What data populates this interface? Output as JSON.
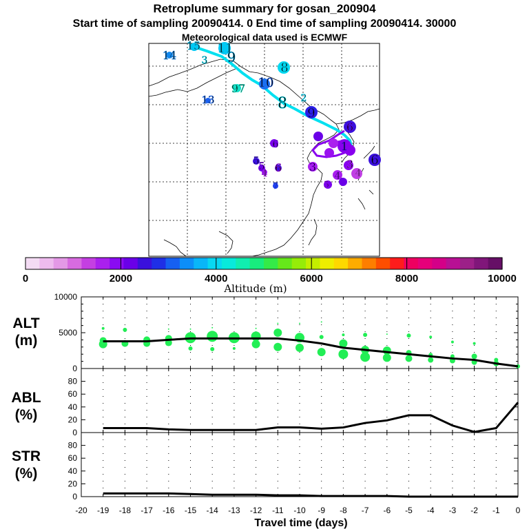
{
  "header": {
    "title": "Retroplume summary for gosan_200904",
    "line2": "Start time of sampling 20090414.    0     End time of sampling 20090414. 30000",
    "line3": "Meteorological data used is ECMWF"
  },
  "colorbar": {
    "title": "Altitude (m)",
    "tick_labels": [
      "0",
      "2000",
      "4000",
      "6000",
      "8000",
      "10000"
    ],
    "colors": [
      "#f4dcf4",
      "#eebbee",
      "#e499e6",
      "#d86be0",
      "#c43fe2",
      "#aa20ee",
      "#8a0bf2",
      "#6a00e8",
      "#3a10dc",
      "#1f2fe6",
      "#1660f2",
      "#0c8ef8",
      "#09b6f8",
      "#08d8f2",
      "#08eadc",
      "#10eeb0",
      "#18ec7e",
      "#34ea48",
      "#66e81a",
      "#96ec08",
      "#c4ee00",
      "#eeee00",
      "#fed800",
      "#feac00",
      "#fe7e00",
      "#fe4e00",
      "#fe1c1c",
      "#ee0060",
      "#e6007a",
      "#d40088",
      "#b81094",
      "#9c2088",
      "#80167a",
      "#660f66"
    ]
  },
  "map": {
    "trajectory_color": "#00e0f0",
    "trajectory2_color": "#8800ee",
    "labels": [
      {
        "t": "15",
        "color": "#00c0f0"
      },
      {
        "t": "11",
        "color": "#00c8f4"
      },
      {
        "t": "14",
        "color": "#1288ee"
      },
      {
        "t": "3",
        "color": "#00d0e8"
      },
      {
        "t": "9",
        "color": "#00b0f0"
      },
      {
        "t": "8",
        "color": "#00d4f0"
      },
      {
        "t": "10",
        "color": "#1a60f0"
      },
      {
        "t": "97",
        "color": "#10e0c0"
      },
      {
        "t": "13",
        "color": "#1a68f0"
      },
      {
        "t": "2",
        "color": "#00d0f0"
      },
      {
        "t": "8",
        "color": "#00e0f0"
      },
      {
        "t": "9",
        "color": "#2a1ee6"
      },
      {
        "t": "5",
        "color": "#3a10dc"
      },
      {
        "t": "6",
        "color": "#7000e8"
      },
      {
        "t": "5",
        "color": "#7a00ec"
      },
      {
        "t": "6",
        "color": "#9a10f0"
      },
      {
        "t": "4",
        "color": "#aa20ee"
      },
      {
        "t": "7",
        "color": "#2040f0"
      },
      {
        "t": "6",
        "color": "#6a00e8"
      },
      {
        "t": "3",
        "color": "#8800ee"
      },
      {
        "t": "4",
        "color": "#c040e4"
      },
      {
        "t": "3",
        "color": "#aa20ee"
      },
      {
        "t": "4",
        "color": "#9a10f0"
      },
      {
        "t": "5",
        "color": "#8800ee"
      },
      {
        "t": "6",
        "color": "#3a10dc"
      },
      {
        "t": "1",
        "color": "#3a10dc"
      }
    ]
  },
  "panels": {
    "alt": {
      "label1": "ALT",
      "label2": "(m)"
    },
    "abl": {
      "label1": "ABL",
      "label2": "(%)"
    },
    "str": {
      "label1": "STR",
      "label2": "(%)"
    }
  },
  "xaxis_title": "Travel time (days)",
  "chart_data": [
    {
      "type": "scatter",
      "title": "ALT (m)",
      "xlabel": "Travel time (days)",
      "ylabel": "ALT (m)",
      "xlim": [
        -20,
        0
      ],
      "ylim": [
        0,
        10000
      ],
      "y_ticks": [
        "0",
        "5000",
        "10000"
      ],
      "x": [
        -19,
        -18,
        -17,
        -16,
        -15,
        -14,
        -13,
        -12,
        -11,
        -10,
        -9,
        -8,
        -7,
        -6,
        -5,
        -4,
        -3,
        -2,
        -1,
        0
      ],
      "series": [
        {
          "name": "median altitude",
          "color": "#000000",
          "values": [
            3800,
            3800,
            3800,
            4000,
            4200,
            4200,
            4200,
            4200,
            4200,
            3900,
            3500,
            2900,
            2600,
            2300,
            2000,
            1700,
            1400,
            1200,
            700,
            300
          ]
        },
        {
          "name": "plume points",
          "color": "#22ee55",
          "points": [
            [
              -19,
              3400,
              6
            ],
            [
              -19,
              3900,
              5
            ],
            [
              -19,
              5600,
              2
            ],
            [
              -18,
              3500,
              5
            ],
            [
              -18,
              5400,
              3
            ],
            [
              -17,
              3500,
              5
            ],
            [
              -17,
              4000,
              5
            ],
            [
              -16,
              3600,
              5
            ],
            [
              -16,
              4200,
              5
            ],
            [
              -16,
              5500,
              1
            ],
            [
              -15,
              2800,
              3
            ],
            [
              -15,
              4300,
              8
            ],
            [
              -15,
              5500,
              1
            ],
            [
              -14,
              2700,
              3
            ],
            [
              -14,
              4500,
              8
            ],
            [
              -14,
              5700,
              1
            ],
            [
              -13,
              2800,
              2
            ],
            [
              -13,
              4300,
              8
            ],
            [
              -12,
              3400,
              6
            ],
            [
              -12,
              4500,
              7
            ],
            [
              -12,
              5600,
              1
            ],
            [
              -11,
              3000,
              6
            ],
            [
              -11,
              5000,
              6
            ],
            [
              -11,
              6300,
              1
            ],
            [
              -10,
              2900,
              6
            ],
            [
              -10,
              4300,
              7
            ],
            [
              -10,
              6300,
              1
            ],
            [
              -9,
              2300,
              6
            ],
            [
              -9,
              4400,
              3
            ],
            [
              -9,
              6500,
              1
            ],
            [
              -8,
              2000,
              7
            ],
            [
              -8,
              3500,
              6
            ],
            [
              -8,
              4700,
              2
            ],
            [
              -7,
              1600,
              7
            ],
            [
              -7,
              2600,
              6
            ],
            [
              -7,
              4700,
              3
            ],
            [
              -6,
              1500,
              6
            ],
            [
              -6,
              2500,
              6
            ],
            [
              -6,
              4800,
              1
            ],
            [
              -5,
              1400,
              5
            ],
            [
              -5,
              2200,
              4
            ],
            [
              -5,
              4600,
              3
            ],
            [
              -4,
              1200,
              4
            ],
            [
              -4,
              1900,
              3
            ],
            [
              -4,
              4400,
              2
            ],
            [
              -3,
              1100,
              4
            ],
            [
              -3,
              1700,
              3
            ],
            [
              -3,
              3700,
              2
            ],
            [
              -2,
              900,
              4
            ],
            [
              -2,
              1700,
              4
            ],
            [
              -2,
              3500,
              2
            ],
            [
              -1,
              700,
              4
            ],
            [
              -1,
              1200,
              3
            ],
            [
              0,
              300,
              3
            ]
          ]
        }
      ]
    },
    {
      "type": "line",
      "title": "ABL (%)",
      "xlabel": "Travel time (days)",
      "ylabel": "ABL (%)",
      "xlim": [
        -20,
        0
      ],
      "ylim": [
        0,
        100
      ],
      "y_ticks": [
        "0",
        "20",
        "40",
        "60",
        "80"
      ],
      "x": [
        -19,
        -18,
        -17,
        -16,
        -15,
        -14,
        -13,
        -12,
        -11,
        -10,
        -9,
        -8,
        -7,
        -6,
        -5,
        -4,
        -3,
        -2,
        -1,
        0
      ],
      "values": [
        7,
        7,
        7,
        5,
        4,
        4,
        4,
        4,
        8,
        8,
        6,
        8,
        15,
        19,
        27,
        27,
        11,
        1,
        7,
        47
      ]
    },
    {
      "type": "line",
      "title": "STR (%)",
      "xlabel": "Travel time (days)",
      "ylabel": "STR (%)",
      "xlim": [
        -20,
        0
      ],
      "ylim": [
        0,
        100
      ],
      "y_ticks": [
        "0",
        "20",
        "40",
        "60",
        "80"
      ],
      "x_ticks": [
        "-20",
        "-19",
        "-18",
        "-17",
        "-16",
        "-15",
        "-14",
        "-13",
        "-12",
        "-11",
        "-10",
        "-9",
        "-8",
        "-7",
        "-6",
        "-5",
        "-4",
        "-3",
        "-2",
        "-1",
        "0"
      ],
      "x": [
        -19,
        -18,
        -17,
        -16,
        -15,
        -14,
        -13,
        -12,
        -11,
        -10,
        -9,
        -8,
        -7,
        -6,
        -5,
        -4,
        -3,
        -2,
        -1,
        0
      ],
      "values": [
        5,
        5,
        5,
        5,
        4,
        3,
        3,
        3,
        2,
        2,
        1,
        1,
        1,
        1,
        0,
        0,
        0,
        0,
        0,
        0
      ]
    }
  ]
}
